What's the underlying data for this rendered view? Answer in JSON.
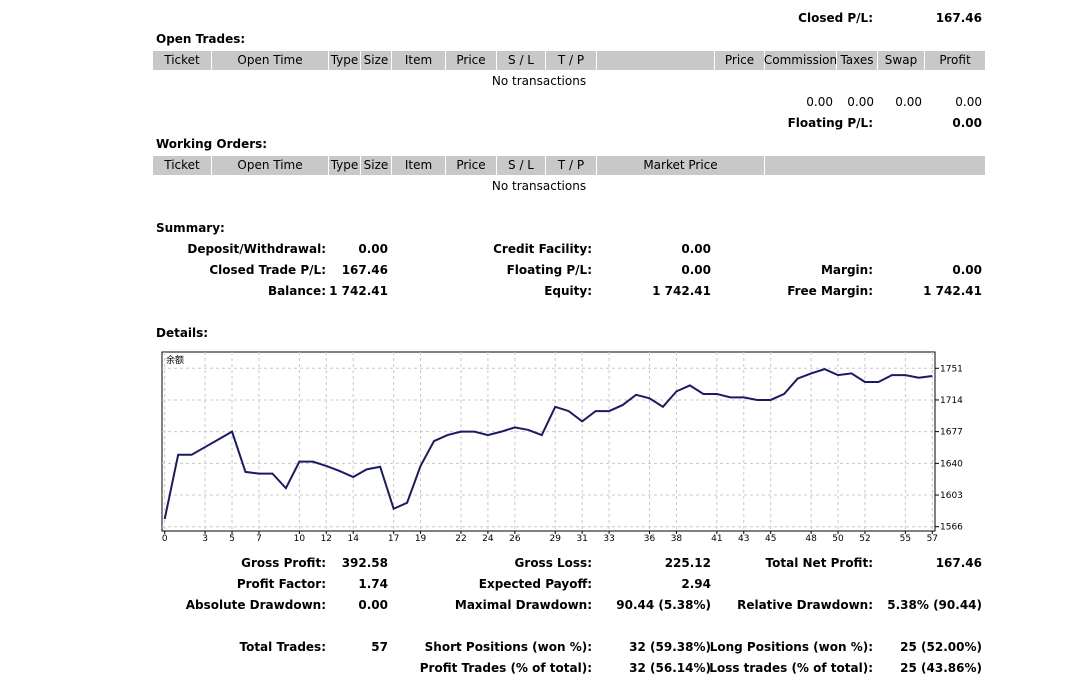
{
  "closed_trades": {
    "total_label": "Closed P/L:",
    "total": "167.46"
  },
  "open_trades": {
    "title": "Open Trades:",
    "headers": [
      "Ticket",
      "Open Time",
      "Type",
      "Size",
      "Item",
      "Price",
      "S / L",
      "T / P",
      "Price",
      "Commission",
      "Taxes",
      "Swap",
      "Profit"
    ],
    "empty": "No transactions",
    "totals": [
      "0.00",
      "0.00",
      "0.00",
      "0.00"
    ],
    "floating_label": "Floating P/L:",
    "floating": "0.00"
  },
  "working_orders": {
    "title": "Working Orders:",
    "headers": [
      "Ticket",
      "Open Time",
      "Type",
      "Size",
      "Item",
      "Price",
      "S / L",
      "T / P",
      "Market Price"
    ],
    "empty": "No transactions"
  },
  "summary": {
    "title": "Summary:",
    "rows": [
      [
        {
          "label": "Deposit/Withdrawal:",
          "value": "0.00"
        },
        {
          "label": "Credit Facility:",
          "value": "0.00"
        }
      ],
      [
        {
          "label": "Closed Trade P/L:",
          "value": "167.46"
        },
        {
          "label": "Floating P/L:",
          "value": "0.00"
        },
        {
          "label": "Margin:",
          "value": "0.00"
        }
      ],
      [
        {
          "label": "Balance:",
          "value": "1 742.41"
        },
        {
          "label": "Equity:",
          "value": "1 742.41"
        },
        {
          "label": "Free Margin:",
          "value": "1 742.41"
        }
      ]
    ]
  },
  "details": {
    "title": "Details:",
    "stats": [
      [
        {
          "label": "Gross Profit:",
          "value": "392.58"
        },
        {
          "label": "Gross Loss:",
          "value": "225.12"
        },
        {
          "label": "Total Net Profit:",
          "value": "167.46"
        }
      ],
      [
        {
          "label": "Profit Factor:",
          "value": "1.74"
        },
        {
          "label": "Expected Payoff:",
          "value": "2.94"
        }
      ],
      [
        {
          "label": "Absolute Drawdown:",
          "value": "0.00"
        },
        {
          "label": "Maximal Drawdown:",
          "value": "90.44 (5.38%)"
        },
        {
          "label": "Relative Drawdown:",
          "value": "5.38% (90.44)"
        }
      ],
      [
        {
          "label": "Total Trades:",
          "value": "57"
        },
        {
          "label": "Short Positions (won %):",
          "value": "32 (59.38%)"
        },
        {
          "label": "Long Positions (won %):",
          "value": "25 (52.00%)"
        }
      ],
      [
        {
          "label": "Profit Trades (% of total):",
          "value": "32 (56.14%)"
        },
        {
          "label": "Loss trades (% of total):",
          "value": "25 (43.86%)"
        }
      ]
    ]
  },
  "chart_data": {
    "type": "line",
    "label": "余额",
    "color": "#1a1a66",
    "grid": true,
    "x": [
      0,
      1,
      2,
      3,
      4,
      5,
      6,
      7,
      8,
      9,
      10,
      11,
      12,
      13,
      14,
      15,
      16,
      17,
      18,
      19,
      20,
      21,
      22,
      23,
      24,
      25,
      26,
      27,
      28,
      29,
      30,
      31,
      32,
      33,
      34,
      35,
      36,
      37,
      38,
      39,
      40,
      41,
      42,
      43,
      44,
      45,
      46,
      47,
      48,
      49,
      50,
      51,
      52,
      53,
      54,
      55,
      56,
      57
    ],
    "values": [
      1575,
      1650,
      1650,
      1659,
      1668,
      1677,
      1630,
      1628,
      1628,
      1611,
      1642,
      1642,
      1637,
      1631,
      1624,
      1633,
      1636,
      1587,
      1594,
      1637,
      1666,
      1673,
      1677,
      1677,
      1673,
      1677,
      1682,
      1679,
      1673,
      1706,
      1701,
      1689,
      1701,
      1701,
      1708,
      1720,
      1716,
      1706,
      1724,
      1731,
      1721,
      1721,
      1717,
      1717,
      1714,
      1714,
      1721,
      1739,
      1745,
      1750,
      1743,
      1745,
      1735,
      1735,
      1743,
      1743,
      1740,
      1742
    ],
    "xlim": [
      -0.2,
      57.2
    ],
    "ylim": [
      1561,
      1770
    ],
    "xticks": [
      0,
      3,
      5,
      7,
      10,
      12,
      14,
      17,
      19,
      22,
      24,
      26,
      29,
      31,
      33,
      36,
      38,
      41,
      43,
      45,
      48,
      50,
      52,
      55,
      57
    ],
    "yticks": [
      1566,
      1603,
      1640,
      1677,
      1714,
      1751
    ]
  }
}
